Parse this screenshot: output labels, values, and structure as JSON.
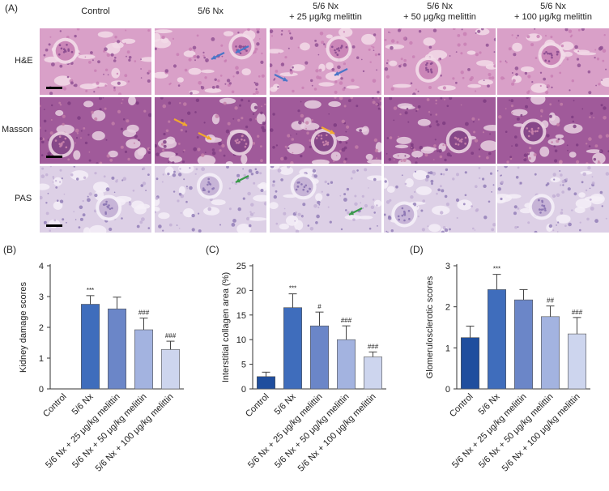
{
  "panel_a": {
    "label": "(A)",
    "columns": [
      "Control",
      "5/6 Nx",
      "5/6 Nx\n+ 25 μg/kg melittin",
      "5/6 Nx\n+ 50 μg/kg melittin",
      "5/6 Nx\n+ 100 μg/kg melittin"
    ],
    "rows": [
      "H&E",
      "Masson",
      "PAS"
    ],
    "stain_colors": {
      "H&E": "#d9a0c8",
      "Masson": "#a05a9a",
      "PAS": "#ddd0e6"
    },
    "arrow_colors": {
      "blue": "#4a76c8",
      "orange": "#f0a830",
      "green": "#3a9a4a"
    }
  },
  "chart_data": [
    {
      "panel": "(B)",
      "type": "bar",
      "ylabel": "Kidney damage scores",
      "ylim": [
        0,
        4
      ],
      "yticks": [
        0,
        1,
        2,
        3,
        4
      ],
      "categories": [
        "Control",
        "5/6 Nx",
        "5/6 Nx + 25 μg/kg melittin",
        "5/6 Nx + 50 μg/kg melittin",
        "5/6 Nx + 100 μg/kg melittin"
      ],
      "values": [
        0,
        2.75,
        2.6,
        1.92,
        1.28
      ],
      "errors": [
        0,
        0.28,
        0.38,
        0.38,
        0.27
      ],
      "annotations": [
        "",
        "***",
        "",
        "###",
        "###"
      ],
      "colors": [
        "#1f4e9e",
        "#3f6dbc",
        "#6b86c8",
        "#a3b3e0",
        "#cdd5ee"
      ]
    },
    {
      "panel": "(C)",
      "type": "bar",
      "ylabel": "Interstitial collagen area (%)",
      "ylim": [
        0,
        25
      ],
      "yticks": [
        0,
        5,
        10,
        15,
        20,
        25
      ],
      "categories": [
        "Control",
        "5/6 Nx",
        "5/6 Nx + 25 μg/kg melittin",
        "5/6 Nx + 50 μg/kg melittin",
        "5/6 Nx + 100 μg/kg melittin"
      ],
      "values": [
        2.5,
        16.5,
        12.8,
        10.0,
        6.5
      ],
      "errors": [
        0.9,
        2.8,
        2.8,
        2.8,
        1.0
      ],
      "annotations": [
        "",
        "***",
        "#",
        "###",
        "###"
      ],
      "colors": [
        "#1f4e9e",
        "#3f6dbc",
        "#6b86c8",
        "#a3b3e0",
        "#cdd5ee"
      ]
    },
    {
      "panel": "(D)",
      "type": "bar",
      "ylabel": "Glomerulosclerotic scores",
      "ylim": [
        0,
        3
      ],
      "yticks": [
        0,
        1,
        2,
        3
      ],
      "categories": [
        "Control",
        "5/6 Nx",
        "5/6 Nx + 25 μg/kg melittin",
        "5/6 Nx + 50 μg/kg melittin",
        "5/6 Nx + 100 μg/kg melittin"
      ],
      "values": [
        1.25,
        2.42,
        2.17,
        1.76,
        1.34
      ],
      "errors": [
        0.28,
        0.37,
        0.25,
        0.26,
        0.4
      ],
      "annotations": [
        "",
        "***",
        "",
        "##",
        "###"
      ],
      "colors": [
        "#1f4e9e",
        "#3f6dbc",
        "#6b86c8",
        "#a3b3e0",
        "#cdd5ee"
      ]
    }
  ]
}
